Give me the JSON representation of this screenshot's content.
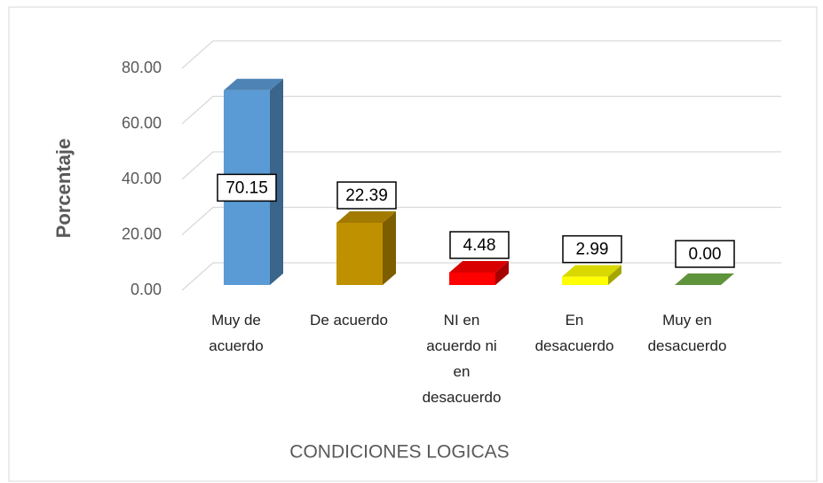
{
  "chart_data": {
    "type": "bar3d",
    "categories": [
      "Muy de acuerdo",
      "De acuerdo",
      "NI en acuerdo ni en desacuerdo",
      "En desacuerdo",
      "Muy en desacuerdo"
    ],
    "values": [
      70.15,
      22.39,
      4.48,
      2.99,
      0.0
    ],
    "value_labels": [
      "70.15",
      "22.39",
      "4.48",
      "2.99",
      "0.00"
    ],
    "colors": [
      "#5b9bd5",
      "#bf9000",
      "#ff0000",
      "#ffff00",
      "#70ad47"
    ],
    "y_label": "Porcentaje",
    "x_label": "CONDICIONES LOGICAS",
    "ylim": [
      0,
      80
    ],
    "yticks": [
      {
        "value": 0,
        "label": "0.00"
      },
      {
        "value": 20,
        "label": "20.00"
      },
      {
        "value": 40,
        "label": "40.00"
      },
      {
        "value": 60,
        "label": "60.00"
      },
      {
        "value": 80,
        "label": "80.00"
      }
    ],
    "grid": true
  }
}
